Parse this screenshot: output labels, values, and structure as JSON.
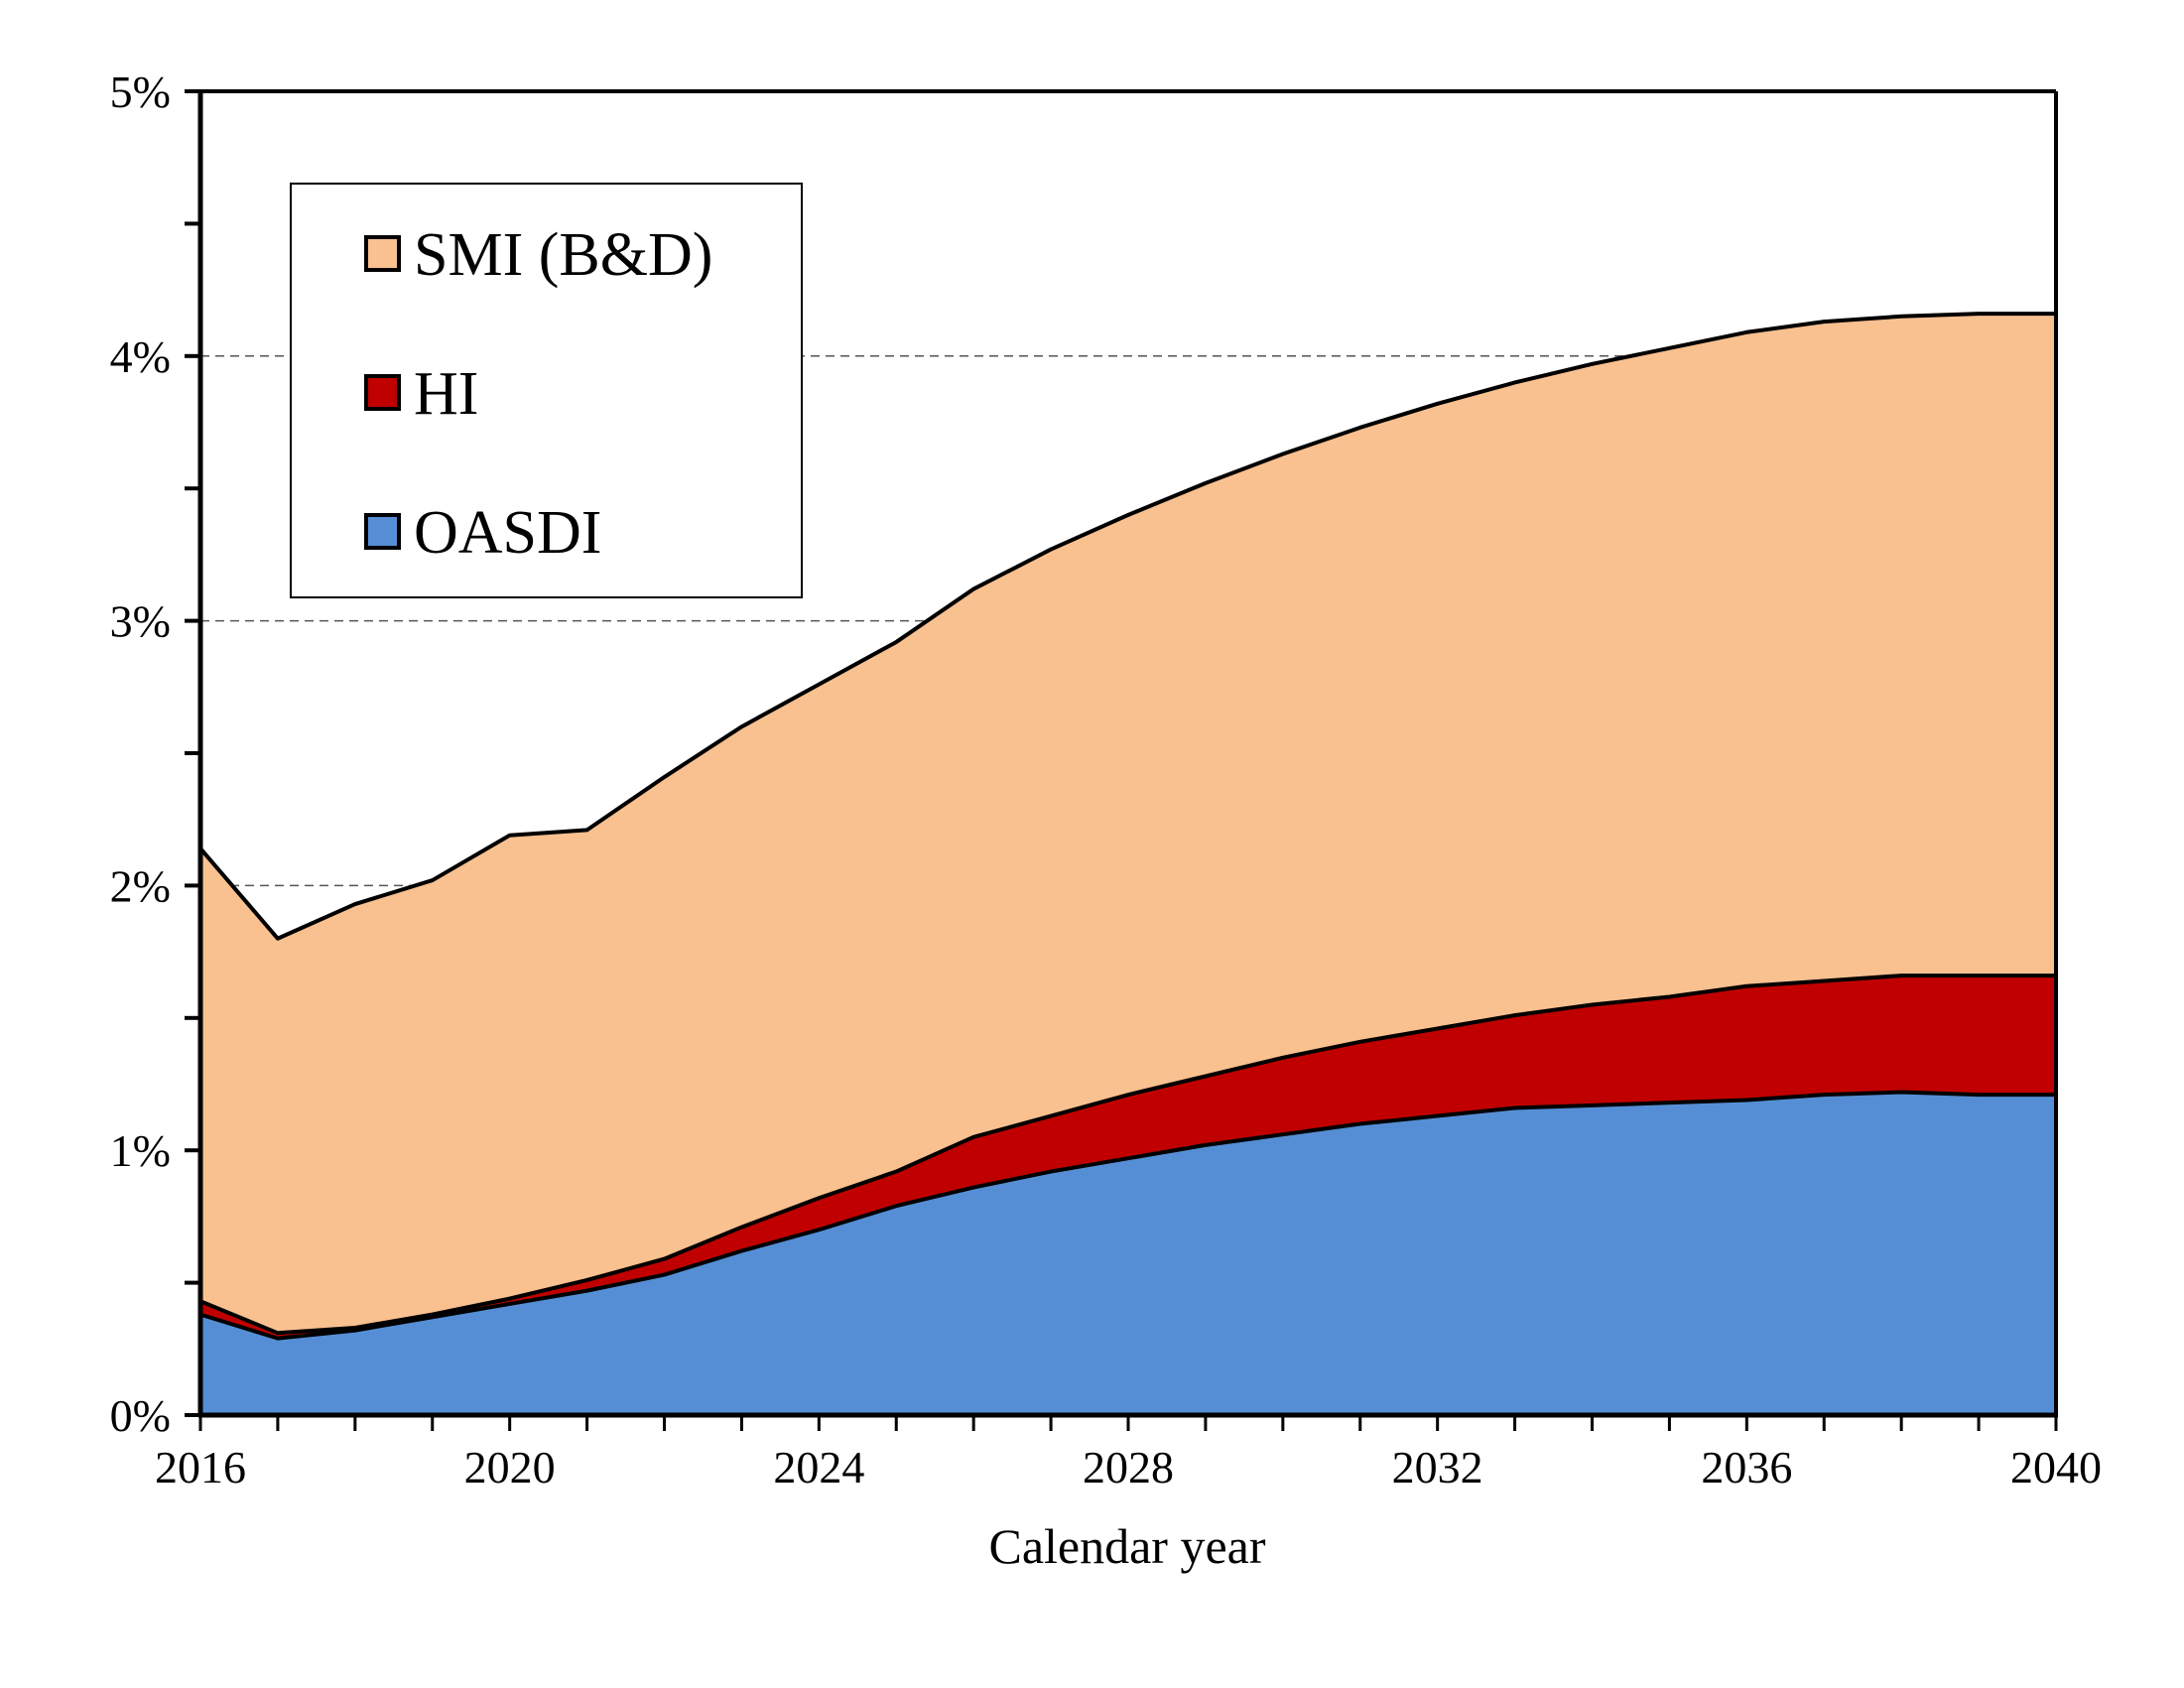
{
  "chart_data": {
    "type": "area",
    "stacked": true,
    "title": "",
    "xlabel": "Calendar year",
    "ylabel": "",
    "x": [
      2016,
      2017,
      2018,
      2019,
      2020,
      2021,
      2022,
      2023,
      2024,
      2025,
      2026,
      2027,
      2028,
      2029,
      2030,
      2031,
      2032,
      2033,
      2034,
      2035,
      2036,
      2037,
      2038,
      2039,
      2040
    ],
    "xlim": [
      2016,
      2040
    ],
    "ylim": [
      0,
      5
    ],
    "x_ticks": [
      2016,
      2020,
      2024,
      2028,
      2032,
      2036,
      2040
    ],
    "x_tick_labels": [
      "2016",
      "2020",
      "2024",
      "2028",
      "2032",
      "2036",
      "2040"
    ],
    "x_minor_tick_step": 1,
    "y_ticks": [
      0,
      1,
      2,
      3,
      4,
      5
    ],
    "y_tick_labels": [
      "0%",
      "1%",
      "2%",
      "3%",
      "4%",
      "5%"
    ],
    "y_minor_tick_step": 0.5,
    "grid": {
      "y_major": true,
      "style": "dashed",
      "values": [
        2,
        3,
        4
      ]
    },
    "legend": {
      "position": "top-left",
      "order": [
        "SMI (B&D)",
        "HI",
        "OASDI"
      ]
    },
    "series_cumulative_top": true,
    "series": [
      {
        "name": "OASDI",
        "color": "#558ED5",
        "cumulative": [
          0.38,
          0.29,
          0.32,
          0.37,
          0.42,
          0.47,
          0.53,
          0.62,
          0.7,
          0.79,
          0.86,
          0.92,
          0.97,
          1.02,
          1.06,
          1.1,
          1.13,
          1.16,
          1.17,
          1.18,
          1.19,
          1.21,
          1.22,
          1.21,
          1.21
        ]
      },
      {
        "name": "HI",
        "color": "#C00000",
        "cumulative": [
          0.43,
          0.31,
          0.33,
          0.38,
          0.44,
          0.51,
          0.59,
          0.71,
          0.82,
          0.92,
          1.05,
          1.13,
          1.21,
          1.28,
          1.35,
          1.41,
          1.46,
          1.51,
          1.55,
          1.58,
          1.62,
          1.64,
          1.66,
          1.66,
          1.66
        ]
      },
      {
        "name": "SMI (B&D)",
        "color": "#F9C090",
        "cumulative": [
          2.14,
          1.8,
          1.93,
          2.02,
          2.19,
          2.21,
          2.41,
          2.6,
          2.76,
          2.92,
          3.12,
          3.27,
          3.4,
          3.52,
          3.63,
          3.73,
          3.82,
          3.9,
          3.97,
          4.03,
          4.09,
          4.13,
          4.15,
          4.16,
          4.16
        ]
      }
    ]
  }
}
